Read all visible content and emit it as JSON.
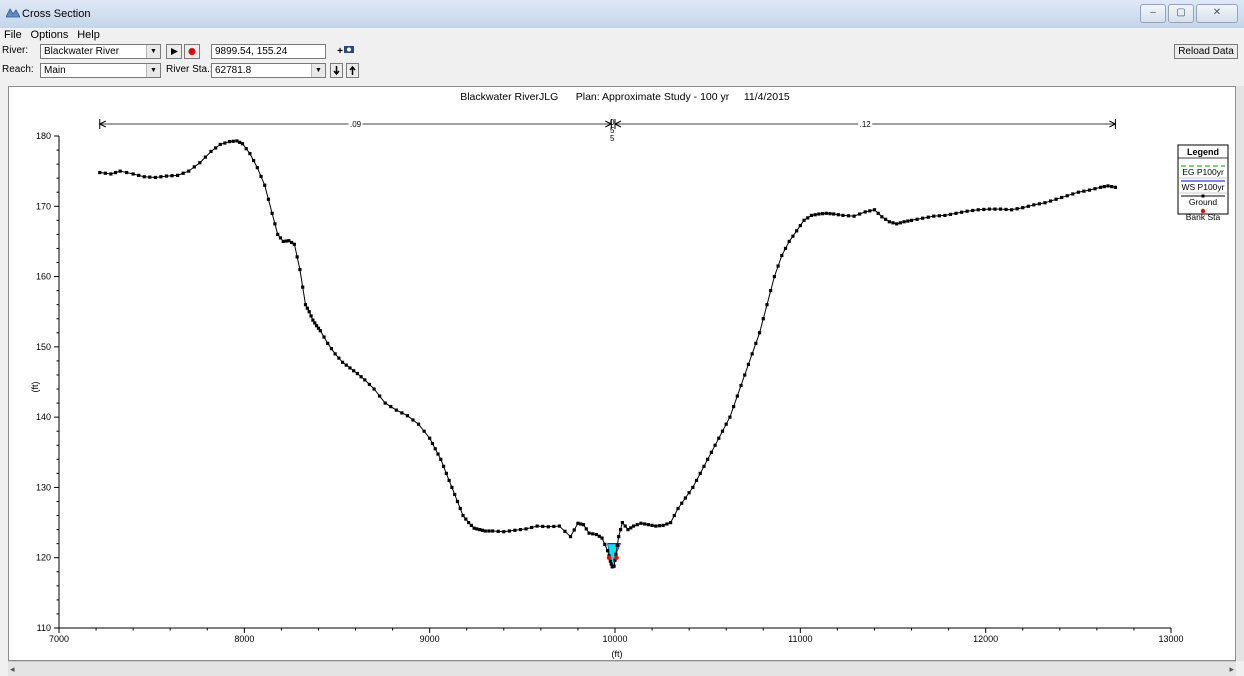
{
  "window": {
    "title": "Cross Section",
    "minimize": "–",
    "maximize": "▢",
    "close": "✕"
  },
  "menu": [
    "File",
    "Options",
    "Help"
  ],
  "toolbar": {
    "river_label": "River:",
    "river_value": "Blackwater River",
    "coord_value": "9899.54, 155.24",
    "add_label": "+",
    "reach_label": "Reach:",
    "reach_value": "Main",
    "station_label": "River Sta.:",
    "station_value": "62781.8",
    "reload_label": "Reload Data",
    "colors": {
      "record": "#e00000"
    }
  },
  "chart_data": {
    "type": "line",
    "title": "Blackwater RiverJLG      Plan: Approximate Study - 100 yr     11/4/2015",
    "xlabel": "(ft)",
    "ylabel": "(ft)",
    "xlim": [
      7000,
      13000
    ],
    "ylim": [
      110,
      180
    ],
    "xticks": [
      7000,
      8000,
      9000,
      10000,
      11000,
      12000,
      13000
    ],
    "yticks": [
      110,
      120,
      130,
      140,
      150,
      160,
      170,
      180
    ],
    "grid": false,
    "legend": {
      "title": "Legend",
      "placement": "top-right",
      "entries": [
        {
          "name": "EG P100yr",
          "color": "#00a000",
          "style": "dashed"
        },
        {
          "name": "WS P100yr",
          "color": "#0000ff",
          "style": "solid"
        },
        {
          "name": "Ground",
          "color": "#000000",
          "style": "line-marker"
        },
        {
          "name": "Bank Sta",
          "color": "#ff0000",
          "style": "marker"
        }
      ]
    },
    "manning": [
      {
        "label": ".09",
        "x_start": 7220,
        "x_end": 9980
      },
      {
        "label": ".12",
        "x_start": 10000,
        "x_end": 12700
      }
    ],
    "manning_center": {
      "label": "0\n5\n5",
      "x": 9985
    },
    "bank_stations": [
      [
        9968,
        120.0
      ],
      [
        10008,
        120.0
      ]
    ],
    "water_surface": {
      "elevation": 122.0,
      "x_left": 9960,
      "x_right": 10030,
      "color": "#00e5ee"
    },
    "ground": {
      "x": [
        7220,
        7280,
        7330,
        7400,
        7460,
        7520,
        7580,
        7640,
        7700,
        7760,
        7820,
        7870,
        7920,
        7960,
        7990,
        8030,
        8070,
        8110,
        8150,
        8180,
        8210,
        8240,
        8270,
        8300,
        8330,
        8350,
        8370,
        8390,
        8410,
        8450,
        8490,
        8530,
        8570,
        8610,
        8650,
        8700,
        8760,
        8820,
        8880,
        8940,
        9000,
        9030,
        9060,
        9090,
        9120,
        9150,
        9180,
        9210,
        9240,
        9270,
        9300,
        9340,
        9400,
        9460,
        9520,
        9580,
        9640,
        9700,
        9760,
        9800,
        9830,
        9860,
        9900,
        9930,
        9960,
        9975,
        9985,
        9995,
        10005,
        10020,
        10040,
        10070,
        10100,
        10140,
        10180,
        10220,
        10260,
        10300,
        10340,
        10380,
        10420,
        10460,
        10500,
        10540,
        10580,
        10620,
        10660,
        10700,
        10740,
        10780,
        10820,
        10860,
        10900,
        10940,
        10980,
        11020,
        11060,
        11100,
        11140,
        11180,
        11230,
        11290,
        11350,
        11400,
        11440,
        11480,
        11520,
        11560,
        11600,
        11660,
        11720,
        11780,
        11840,
        11900,
        11960,
        12020,
        12080,
        12140,
        12200,
        12260,
        12320,
        12380,
        12440,
        12500,
        12560,
        12620,
        12660,
        12700
      ],
      "y": [
        174.8,
        174.6,
        175.0,
        174.6,
        174.2,
        174.1,
        174.3,
        174.4,
        175.0,
        176.2,
        177.8,
        178.8,
        179.2,
        179.3,
        178.9,
        177.5,
        175.5,
        173.0,
        169.0,
        166.0,
        165.0,
        165.1,
        164.6,
        161.0,
        156.0,
        155.0,
        153.8,
        153.0,
        152.3,
        150.5,
        149.0,
        147.8,
        147.0,
        146.2,
        145.3,
        144.0,
        142.0,
        141.0,
        140.2,
        139.0,
        137.0,
        135.5,
        134.0,
        132.0,
        130.0,
        128.0,
        126.0,
        125.0,
        124.2,
        124.0,
        123.8,
        123.8,
        123.7,
        123.9,
        124.1,
        124.5,
        124.4,
        124.5,
        123.0,
        124.9,
        124.7,
        123.5,
        123.3,
        122.8,
        121.0,
        119.5,
        118.7,
        118.8,
        120.5,
        123.0,
        125.0,
        124.0,
        124.5,
        124.9,
        124.7,
        124.5,
        124.6,
        125.0,
        127.0,
        128.5,
        130.0,
        132.0,
        134.0,
        136.0,
        138.0,
        140.0,
        143.0,
        146.0,
        149.0,
        152.0,
        156.0,
        160.0,
        163.0,
        165.0,
        166.5,
        168.0,
        168.7,
        168.9,
        169.0,
        168.9,
        168.7,
        168.6,
        169.2,
        169.5,
        168.5,
        167.8,
        167.5,
        167.8,
        168.0,
        168.3,
        168.6,
        168.7,
        169.0,
        169.3,
        169.5,
        169.6,
        169.6,
        169.5,
        169.8,
        170.2,
        170.5,
        171.0,
        171.5,
        172.0,
        172.3,
        172.7,
        172.9,
        172.7
      ]
    }
  }
}
